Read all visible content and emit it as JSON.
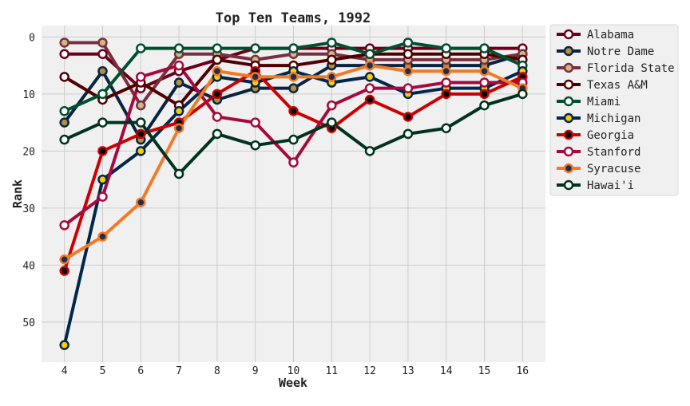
{
  "chart_data": {
    "type": "line",
    "title": "Top Ten Teams, 1992",
    "xlabel": "Week",
    "ylabel": "Rank",
    "x": [
      4,
      5,
      6,
      7,
      8,
      9,
      10,
      11,
      12,
      13,
      14,
      15,
      16
    ],
    "xlim": [
      3.4,
      16.6
    ],
    "ylim": [
      57,
      -2
    ],
    "y_inverted": true,
    "yticks": [
      0,
      10,
      20,
      30,
      40,
      50
    ],
    "grid": true,
    "legend_position": "outside-right",
    "series": [
      {
        "name": "Alabama",
        "line_color": "#6a001a",
        "marker_face": "#ffffff",
        "values": [
          3,
          3,
          9,
          6,
          4,
          2,
          2,
          2,
          2,
          2,
          2,
          2,
          2
        ]
      },
      {
        "name": "Notre Dame",
        "line_color": "#0c2340",
        "marker_face": "#ae9142",
        "values": [
          15,
          6,
          18,
          8,
          11,
          9,
          9,
          5,
          5,
          5,
          5,
          5,
          3
        ]
      },
      {
        "name": "Florida State",
        "line_color": "#782f40",
        "marker_face": "#ceb888",
        "values": [
          1,
          1,
          12,
          3,
          3,
          4,
          3,
          3,
          4,
          4,
          4,
          4,
          3
        ]
      },
      {
        "name": "Texas A&M",
        "line_color": "#500000",
        "marker_face": "#ffffff",
        "values": [
          7,
          11,
          8,
          12,
          4,
          5,
          5,
          4,
          3,
          3,
          3,
          3,
          4
        ]
      },
      {
        "name": "Miami",
        "line_color": "#005030",
        "marker_face": "#ffffff",
        "values": [
          13,
          10,
          2,
          2,
          2,
          2,
          2,
          1,
          3,
          1,
          2,
          2,
          5
        ]
      },
      {
        "name": "Michigan",
        "line_color": "#00274c",
        "marker_face": "#ffcb05",
        "values": [
          54,
          25,
          20,
          13,
          7,
          8,
          6,
          8,
          7,
          10,
          9,
          9,
          6
        ]
      },
      {
        "name": "Georgia",
        "line_color": "#cc0000",
        "marker_face": "#000000",
        "values": [
          41,
          20,
          17,
          15,
          10,
          6,
          13,
          16,
          11,
          14,
          10,
          10,
          7
        ]
      },
      {
        "name": "Stanford",
        "line_color": "#a6093d",
        "marker_face": "#ffffff",
        "values": [
          33,
          28,
          7,
          5,
          14,
          15,
          22,
          12,
          9,
          9,
          8,
          8,
          8
        ]
      },
      {
        "name": "Syracuse",
        "line_color": "#f27a25",
        "marker_face": "#1f2d4e",
        "values": [
          39,
          35,
          29,
          16,
          6,
          7,
          7,
          7,
          5,
          6,
          6,
          6,
          9
        ]
      },
      {
        "name": "Hawai'i",
        "line_color": "#00331f",
        "marker_face": "#ffffff",
        "values": [
          18,
          15,
          15,
          24,
          17,
          19,
          18,
          15,
          20,
          17,
          16,
          12,
          10
        ]
      }
    ]
  }
}
